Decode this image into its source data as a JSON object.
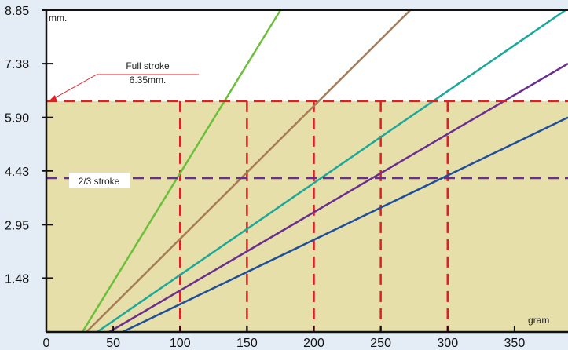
{
  "chart_data": {
    "type": "line",
    "x_unit": "gram",
    "y_unit": "mm.",
    "xlim": [
      0,
      390
    ],
    "ylim": [
      0,
      8.85
    ],
    "xticks": [
      0,
      50,
      100,
      150,
      200,
      250,
      300,
      350
    ],
    "yticks": [
      1.48,
      2.95,
      4.43,
      5.9,
      7.38,
      8.85
    ],
    "ytick_labels": [
      "1.48",
      "2.95",
      "4.43",
      "5.90",
      "7.38",
      "8.85"
    ],
    "shaded_region": {
      "y_to": 6.35,
      "color": "#e6dfaa"
    },
    "series": [
      {
        "color": "#6bbf3a",
        "points": [
          [
            27,
            0
          ],
          [
            175,
            8.85
          ]
        ]
      },
      {
        "color": "#a77b55",
        "points": [
          [
            30,
            0
          ],
          [
            272,
            8.85
          ]
        ]
      },
      {
        "color": "#1aa89a",
        "points": [
          [
            38,
            0
          ],
          [
            388,
            8.85
          ]
        ]
      },
      {
        "color": "#6a2e90",
        "points": [
          [
            47,
            0
          ],
          [
            390,
            7.38
          ]
        ]
      },
      {
        "color": "#1f4e9a",
        "points": [
          [
            57,
            0
          ],
          [
            390,
            5.9
          ]
        ]
      }
    ],
    "reference_lines": {
      "full_stroke": {
        "y": 6.35,
        "color": "#e01e24"
      },
      "two_thirds_stroke": {
        "y": 4.23,
        "color": "#6a2e90"
      },
      "red_verticals": [
        100,
        150,
        200,
        250,
        300
      ]
    },
    "annotations": {
      "full_stroke_label": "Full  stroke",
      "full_stroke_value": "6.35mm.",
      "two_thirds_label": "2/3 stroke"
    }
  }
}
